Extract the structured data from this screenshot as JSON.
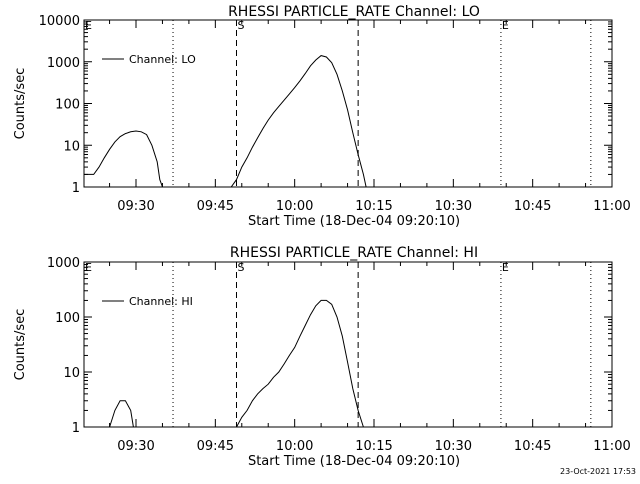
{
  "chart_data": [
    {
      "type": "line",
      "title": "RHESSI PARTICLE_RATE Channel: LO",
      "xlabel": "Start Time (18-Dec-04 09:20:10)",
      "ylabel": "Counts/sec",
      "y_scale": "log",
      "ylim": [
        1,
        10000
      ],
      "xlim": [
        "09:20:10",
        "11:00"
      ],
      "x_ticks": [
        "09:30",
        "09:45",
        "10:00",
        "10:15",
        "10:30",
        "10:45",
        "11:00"
      ],
      "y_ticks": [
        "1",
        "10",
        "100",
        "1000",
        "10000"
      ],
      "legend": {
        "label": "Channel: LO",
        "position": "top-left"
      },
      "markers": [
        {
          "label": "E",
          "x": "09:20:10",
          "style": "none"
        },
        {
          "label": "",
          "x": "09:37",
          "style": "dotted"
        },
        {
          "label": "S",
          "x": "09:49",
          "style": "dashed"
        },
        {
          "label": "",
          "x": "10:12",
          "style": "dashed"
        },
        {
          "label": "E",
          "x": "10:39",
          "style": "dotted"
        },
        {
          "label": "",
          "x": "10:56",
          "style": "dotted"
        }
      ],
      "series": [
        {
          "name": "Channel: LO",
          "points": [
            [
              "09:20:10",
              2
            ],
            [
              "09:22",
              2
            ],
            [
              "09:23",
              3
            ],
            [
              "09:24",
              5
            ],
            [
              "09:25",
              8
            ],
            [
              "09:26",
              12
            ],
            [
              "09:27",
              16
            ],
            [
              "09:28",
              19
            ],
            [
              "09:29",
              21
            ],
            [
              "09:30",
              22
            ],
            [
              "09:31",
              21
            ],
            [
              "09:32",
              18
            ],
            [
              "09:33",
              10
            ],
            [
              "09:34",
              4
            ],
            [
              "09:34:30",
              1.5
            ],
            [
              "09:35",
              1
            ],
            [
              "09:48",
              1
            ],
            [
              "09:49",
              1.5
            ],
            [
              "09:50",
              3
            ],
            [
              "09:51",
              5
            ],
            [
              "09:52",
              9
            ],
            [
              "09:53",
              15
            ],
            [
              "09:54",
              25
            ],
            [
              "09:55",
              40
            ],
            [
              "09:56",
              60
            ],
            [
              "09:57",
              85
            ],
            [
              "09:58",
              120
            ],
            [
              "09:59",
              170
            ],
            [
              "10:00",
              240
            ],
            [
              "10:01",
              350
            ],
            [
              "10:02",
              520
            ],
            [
              "10:03",
              800
            ],
            [
              "10:04",
              1100
            ],
            [
              "10:05",
              1400
            ],
            [
              "10:06",
              1300
            ],
            [
              "10:07",
              950
            ],
            [
              "10:08",
              500
            ],
            [
              "10:09",
              200
            ],
            [
              "10:10",
              70
            ],
            [
              "10:11",
              20
            ],
            [
              "10:12",
              6
            ],
            [
              "10:13",
              2
            ],
            [
              "10:13:30",
              1
            ]
          ]
        }
      ]
    },
    {
      "type": "line",
      "title": "RHESSI PARTICLE_RATE Channel: HI",
      "xlabel": "Start Time (18-Dec-04 09:20:10)",
      "ylabel": "Counts/sec",
      "y_scale": "log",
      "ylim": [
        1,
        1000
      ],
      "xlim": [
        "09:20:10",
        "11:00"
      ],
      "x_ticks": [
        "09:30",
        "09:45",
        "10:00",
        "10:15",
        "10:30",
        "10:45",
        "11:00"
      ],
      "y_ticks": [
        "1",
        "10",
        "100",
        "1000"
      ],
      "legend": {
        "label": "Channel: HI",
        "position": "top-left"
      },
      "markers": [
        {
          "label": "E",
          "x": "09:20:10",
          "style": "none"
        },
        {
          "label": "",
          "x": "09:37",
          "style": "dotted"
        },
        {
          "label": "S",
          "x": "09:49",
          "style": "dashed"
        },
        {
          "label": "",
          "x": "10:12",
          "style": "dashed"
        },
        {
          "label": "E",
          "x": "10:39",
          "style": "dotted"
        },
        {
          "label": "",
          "x": "10:56",
          "style": "dotted"
        }
      ],
      "series": [
        {
          "name": "Channel: HI",
          "points": [
            [
              "09:25",
              1
            ],
            [
              "09:26",
              2
            ],
            [
              "09:27",
              3
            ],
            [
              "09:28",
              3
            ],
            [
              "09:29",
              2
            ],
            [
              "09:29:30",
              1
            ],
            [
              "09:49",
              1
            ],
            [
              "09:50",
              1.5
            ],
            [
              "09:51",
              2
            ],
            [
              "09:52",
              3
            ],
            [
              "09:53",
              4
            ],
            [
              "09:54",
              5
            ],
            [
              "09:55",
              6
            ],
            [
              "09:56",
              8
            ],
            [
              "09:57",
              10
            ],
            [
              "09:58",
              14
            ],
            [
              "09:59",
              20
            ],
            [
              "10:00",
              28
            ],
            [
              "10:01",
              45
            ],
            [
              "10:02",
              70
            ],
            [
              "10:03",
              110
            ],
            [
              "10:04",
              160
            ],
            [
              "10:05",
              200
            ],
            [
              "10:06",
              200
            ],
            [
              "10:07",
              170
            ],
            [
              "10:08",
              100
            ],
            [
              "10:09",
              45
            ],
            [
              "10:10",
              15
            ],
            [
              "10:11",
              5
            ],
            [
              "10:12",
              2
            ],
            [
              "10:13",
              1
            ]
          ]
        }
      ]
    }
  ],
  "footer": {
    "timestamp": "23-Oct-2021 17:53"
  }
}
